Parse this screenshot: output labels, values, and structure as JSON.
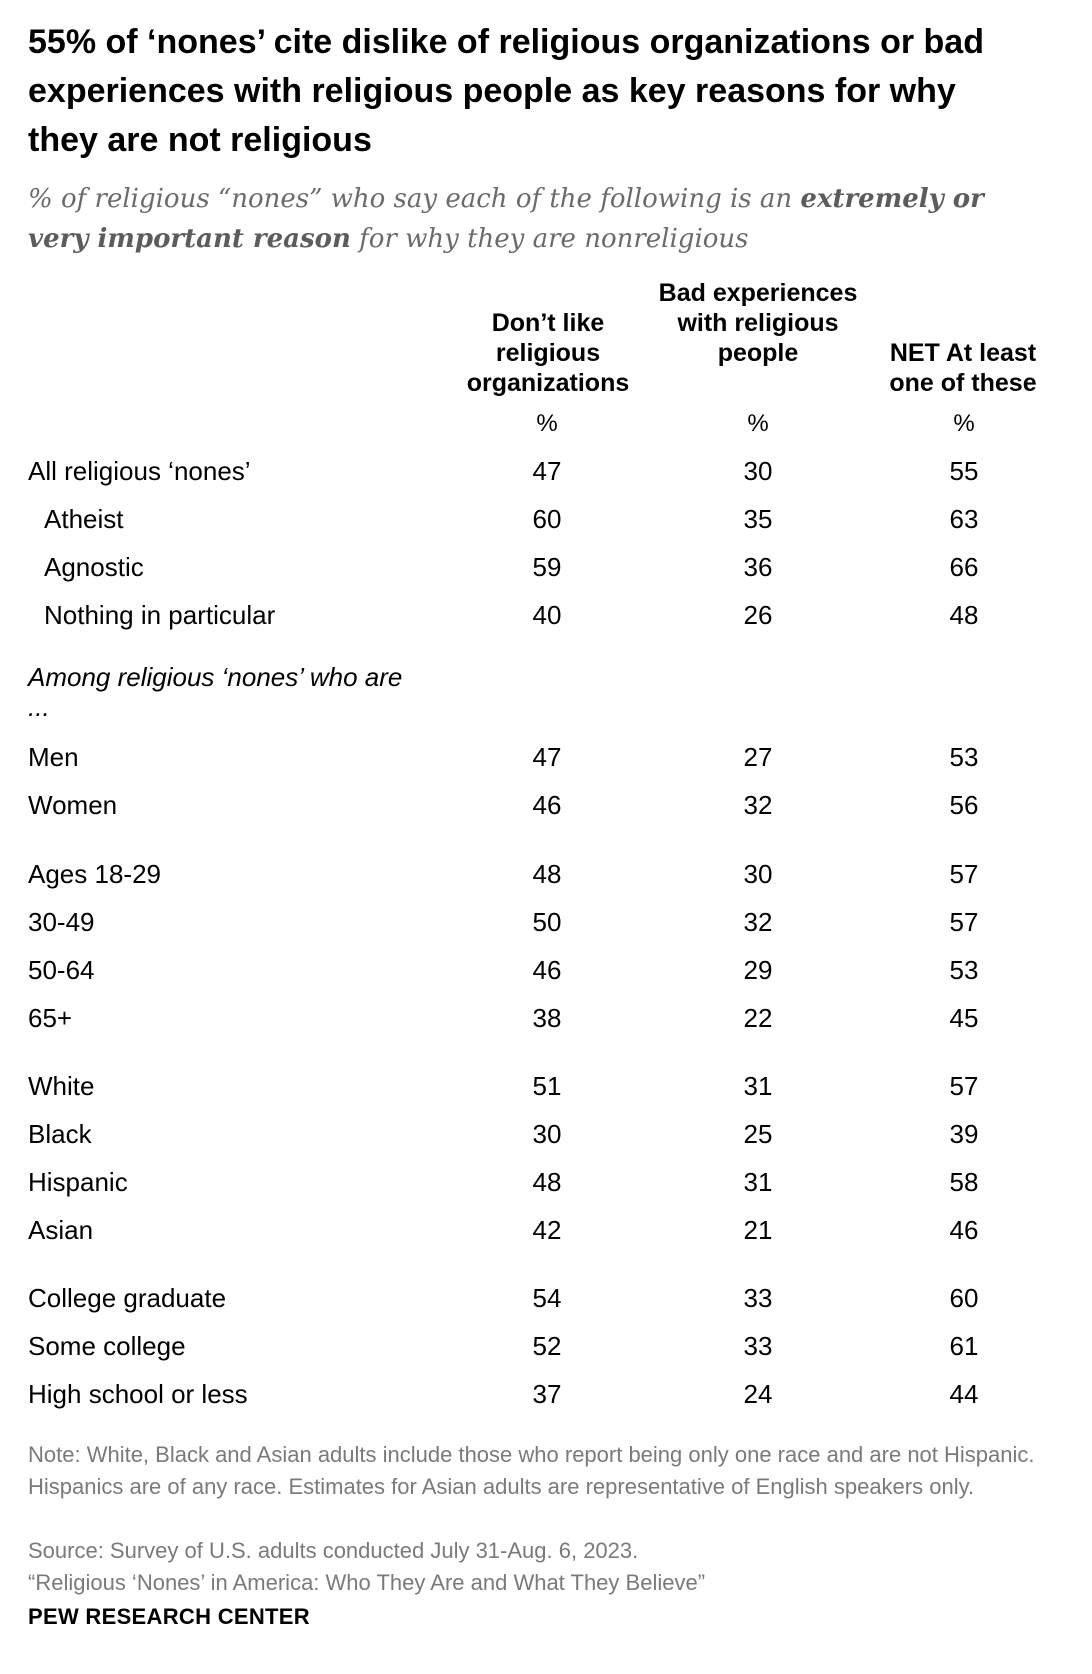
{
  "title": "55% of ‘nones’ cite dislike of religious organizations or bad experiences with religious people as key reasons for why they are not religious",
  "subtitle": {
    "prefix": "% of religious “nones” who say each of the following is an ",
    "emphasis": "extremely or very important reason",
    "suffix": " for why they are nonreligious"
  },
  "chart_data": {
    "type": "table",
    "columns": [
      {
        "header": "Don’t like religious organizations",
        "unit": "%"
      },
      {
        "header": "Bad experiences with religious people",
        "unit": "%"
      },
      {
        "header": "NET At least one of these",
        "unit": "%"
      }
    ],
    "section_label": "Among religious ‘nones’ who are ...",
    "rows": [
      {
        "label": "All religious ‘nones’",
        "values": [
          47,
          30,
          55
        ]
      },
      {
        "label": "Atheist",
        "values": [
          60,
          35,
          63
        ]
      },
      {
        "label": "Agnostic",
        "values": [
          59,
          36,
          66
        ]
      },
      {
        "label": "Nothing in particular",
        "values": [
          40,
          26,
          48
        ]
      },
      {
        "label": "Men",
        "values": [
          47,
          27,
          53
        ]
      },
      {
        "label": "Women",
        "values": [
          46,
          32,
          56
        ]
      },
      {
        "label": "Ages 18-29",
        "values": [
          48,
          30,
          57
        ]
      },
      {
        "label": "30-49",
        "values": [
          50,
          32,
          57
        ]
      },
      {
        "label": "50-64",
        "values": [
          46,
          29,
          53
        ]
      },
      {
        "label": "65+",
        "values": [
          38,
          22,
          45
        ]
      },
      {
        "label": "White",
        "values": [
          51,
          31,
          57
        ]
      },
      {
        "label": "Black",
        "values": [
          30,
          25,
          39
        ]
      },
      {
        "label": "Hispanic",
        "values": [
          48,
          31,
          58
        ]
      },
      {
        "label": "Asian",
        "values": [
          42,
          21,
          46
        ]
      },
      {
        "label": "College graduate",
        "values": [
          54,
          33,
          60
        ]
      },
      {
        "label": "Some college",
        "values": [
          52,
          33,
          61
        ]
      },
      {
        "label": "High school or less",
        "values": [
          37,
          24,
          44
        ]
      }
    ]
  },
  "notes": {
    "note": "Note: White, Black and Asian adults include those who report being only one race and are not Hispanic. Hispanics are of any race. Estimates for Asian adults are representative of English speakers only.",
    "source": "Source: Survey of U.S. adults conducted July 31-Aug. 6, 2023.",
    "report": "“Religious ‘Nones’ in America: Who They Are and What They Believe”"
  },
  "brand": "PEW RESEARCH CENTER"
}
